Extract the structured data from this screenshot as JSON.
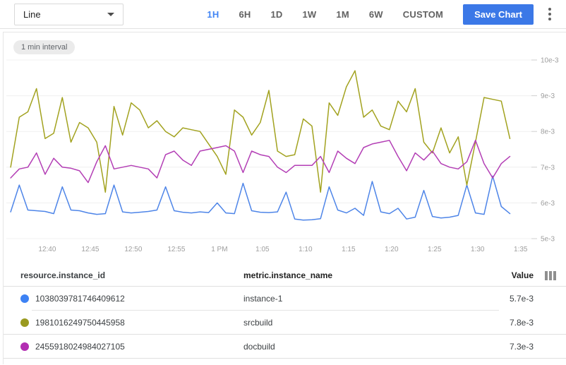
{
  "toolbar": {
    "chart_type_selected": "Line",
    "ranges": [
      {
        "label": "1H",
        "active": true
      },
      {
        "label": "6H",
        "active": false
      },
      {
        "label": "1D",
        "active": false
      },
      {
        "label": "1W",
        "active": false
      },
      {
        "label": "1M",
        "active": false
      },
      {
        "label": "6W",
        "active": false
      },
      {
        "label": "CUSTOM",
        "active": false
      }
    ],
    "save_label": "Save Chart"
  },
  "badge_label": "1 min interval",
  "colors": {
    "accent_blue": "#4285f4",
    "save_button": "#3b78e7"
  },
  "chart_data": {
    "type": "line",
    "title": "",
    "interval": "1 min",
    "grid": "horizontal-only",
    "legend_position": "table-below",
    "x_axis": {
      "tick_labels": [
        "12:40",
        "12:45",
        "12:50",
        "12:55",
        "1 PM",
        "1:05",
        "1:10",
        "1:15",
        "1:20",
        "1:25",
        "1:30",
        "1:35"
      ],
      "start_label": "12:36",
      "interval_minutes": 1
    },
    "y_axis": {
      "side": "right",
      "unit": "e-3",
      "ylim": [
        5,
        10
      ],
      "tick_values": [
        5,
        6,
        7,
        8,
        9,
        10
      ],
      "tick_labels": [
        "5e-3",
        "6e-3",
        "7e-3",
        "8e-3",
        "9e-3",
        "10e-3"
      ]
    },
    "series": [
      {
        "name": "instance-1",
        "instance_id": "1038039781746409612",
        "color": "#4e85e8",
        "latest_value": "5.7e-3",
        "values": [
          5.75,
          6.5,
          5.8,
          5.78,
          5.76,
          5.7,
          6.45,
          5.8,
          5.78,
          5.72,
          5.68,
          5.7,
          6.5,
          5.75,
          5.72,
          5.74,
          5.76,
          5.8,
          6.45,
          5.78,
          5.74,
          5.72,
          5.75,
          5.73,
          6.0,
          5.72,
          5.7,
          6.55,
          5.78,
          5.74,
          5.73,
          5.75,
          6.3,
          5.55,
          5.52,
          5.53,
          5.56,
          6.45,
          5.8,
          5.72,
          5.85,
          5.65,
          6.6,
          5.75,
          5.7,
          5.85,
          5.55,
          5.6,
          6.35,
          5.62,
          5.58,
          5.6,
          5.65,
          6.5,
          5.72,
          5.68,
          6.75,
          5.9,
          5.7
        ]
      },
      {
        "name": "srcbuild",
        "instance_id": "1981016249750445958",
        "color": "#a2a21f",
        "latest_value": "7.8e-3",
        "values": [
          7.0,
          8.4,
          8.55,
          9.2,
          7.8,
          7.95,
          8.95,
          7.7,
          8.25,
          8.1,
          7.7,
          6.3,
          8.7,
          7.9,
          8.8,
          8.6,
          8.1,
          8.3,
          8.0,
          7.85,
          8.1,
          8.05,
          8.0,
          7.65,
          7.3,
          6.8,
          8.6,
          8.4,
          7.9,
          8.25,
          9.15,
          7.45,
          7.3,
          7.35,
          8.35,
          8.15,
          6.3,
          8.8,
          8.45,
          9.25,
          9.7,
          8.4,
          8.6,
          8.15,
          8.05,
          8.85,
          8.55,
          9.2,
          7.7,
          7.4,
          8.1,
          7.4,
          7.85,
          6.5,
          7.7,
          8.95,
          8.9,
          8.85,
          7.8
        ]
      },
      {
        "name": "docbuild",
        "instance_id": "2455918024984027105",
        "color": "#b33eb5",
        "latest_value": "7.3e-3",
        "values": [
          6.7,
          6.95,
          7.0,
          7.4,
          6.8,
          7.25,
          7.0,
          6.97,
          6.9,
          6.57,
          7.15,
          7.6,
          6.95,
          7.0,
          7.05,
          7.0,
          6.95,
          6.7,
          7.35,
          7.45,
          7.2,
          7.05,
          7.45,
          7.5,
          7.55,
          7.6,
          7.45,
          6.85,
          7.45,
          7.35,
          7.3,
          7.0,
          6.85,
          7.05,
          7.05,
          7.05,
          7.3,
          6.85,
          7.45,
          7.25,
          7.1,
          7.55,
          7.65,
          7.7,
          7.75,
          7.3,
          6.9,
          7.4,
          7.2,
          7.45,
          7.1,
          7.0,
          6.95,
          7.15,
          7.75,
          7.1,
          6.7,
          7.1,
          7.3
        ]
      }
    ]
  },
  "table": {
    "headers": {
      "col1": "resource.instance_id",
      "col2": "metric.instance_name",
      "col3": "Value"
    },
    "rows": [
      {
        "color": "#3d82f4",
        "instance_id": "1038039781746409612",
        "instance_name": "instance-1",
        "value": "5.7e-3"
      },
      {
        "color": "#9a9a20",
        "instance_id": "1981016249750445958",
        "instance_name": "srcbuild",
        "value": "7.8e-3"
      },
      {
        "color": "#b22eb2",
        "instance_id": "2455918024984027105",
        "instance_name": "docbuild",
        "value": "7.3e-3"
      }
    ]
  }
}
